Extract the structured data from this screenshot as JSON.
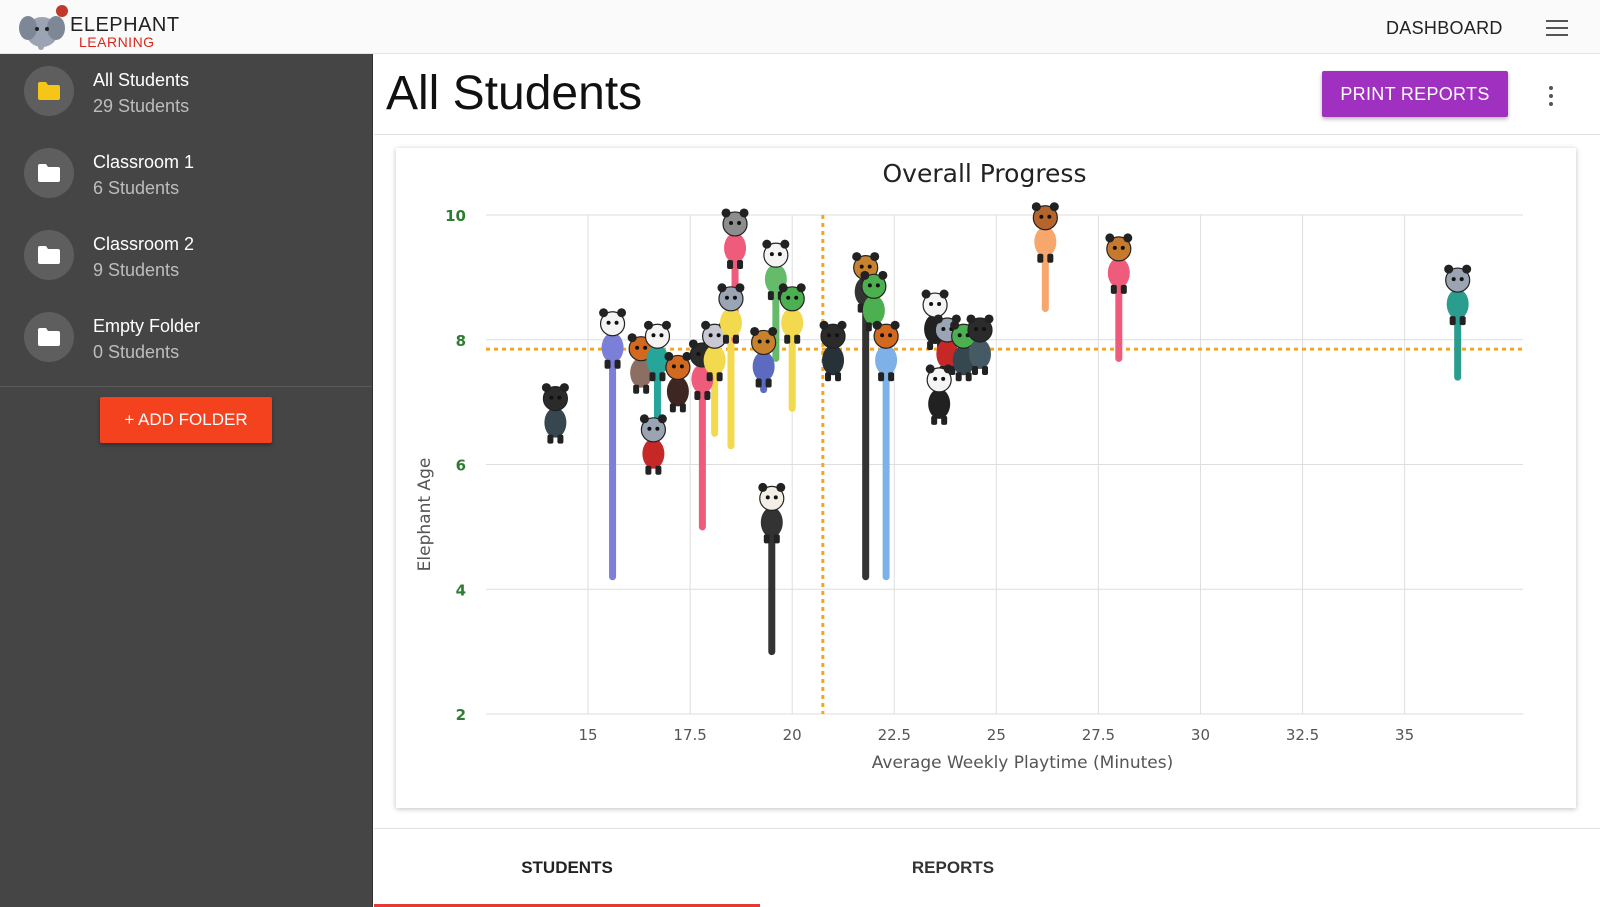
{
  "app": {
    "logo_line1": "ELEPHANT",
    "logo_line2": "LEARNING",
    "nav_link": "DASHBOARD"
  },
  "sidebar": {
    "folders": [
      {
        "name": "All Students",
        "count": "29 Students",
        "icon": "folder-icon",
        "color": "#f5c518"
      },
      {
        "name": "Classroom 1",
        "count": "6 Students",
        "icon": "folder-icon",
        "color": "#ffffff"
      },
      {
        "name": "Classroom 2",
        "count": "9 Students",
        "icon": "folder-icon",
        "color": "#ffffff"
      },
      {
        "name": "Empty Folder",
        "count": "0 Students",
        "icon": "folder-icon",
        "color": "#ffffff"
      }
    ],
    "add_folder_label": "+ ADD FOLDER"
  },
  "main": {
    "title": "All Students",
    "print_label": "PRINT REPORTS",
    "tabs": [
      {
        "label": "STUDENTS",
        "active": true
      },
      {
        "label": "REPORTS",
        "active": false
      }
    ]
  },
  "colors": {
    "accent_button": "#a030c0",
    "add_button": "#f4421f",
    "tab_indicator": "#e53935",
    "reference_line": "#f5a623",
    "axis_tick": "#2e7d32"
  },
  "chart_data": {
    "type": "scatter",
    "title": "Overall Progress",
    "xlabel": "Average Weekly Playtime (Minutes)",
    "ylabel": "Elephant Age",
    "xlim": [
      12.5,
      37.9
    ],
    "ylim": [
      2,
      10
    ],
    "xticks": [
      "15",
      "17.5",
      "20",
      "22.5",
      "25",
      "27.5",
      "30",
      "32.5",
      "35"
    ],
    "yticks": [
      "2",
      "4",
      "6",
      "8",
      "10"
    ],
    "grid": true,
    "reference_lines": {
      "x": 20.75,
      "y": 7.85
    },
    "points": [
      {
        "x": 14.2,
        "y": 6.8,
        "start": 6.8,
        "color": "#37474f",
        "avatar": "cat-avatar"
      },
      {
        "x": 15.6,
        "y": 8.0,
        "start": 4.2,
        "color": "#7b7fd8",
        "avatar": "panda-avatar"
      },
      {
        "x": 16.3,
        "y": 7.6,
        "start": 7.6,
        "color": "#8d6e63",
        "avatar": "fox-avatar"
      },
      {
        "x": 16.7,
        "y": 7.8,
        "start": 6.5,
        "color": "#26a69a",
        "avatar": "panda-avatar"
      },
      {
        "x": 16.6,
        "y": 6.3,
        "start": 6.3,
        "color": "#c62828",
        "avatar": "elephant-avatar"
      },
      {
        "x": 17.2,
        "y": 7.3,
        "start": 7.3,
        "color": "#3e2723",
        "avatar": "fox-avatar"
      },
      {
        "x": 17.8,
        "y": 7.5,
        "start": 5.0,
        "color": "#ef5b7a",
        "avatar": "cat-avatar"
      },
      {
        "x": 18.1,
        "y": 7.8,
        "start": 6.5,
        "color": "#f2d94e",
        "avatar": "bunny-avatar"
      },
      {
        "x": 18.5,
        "y": 8.4,
        "start": 6.3,
        "color": "#f2d94e",
        "avatar": "elephant-avatar"
      },
      {
        "x": 18.6,
        "y": 9.6,
        "start": 8.0,
        "color": "#ef5b7a",
        "avatar": "owl-avatar"
      },
      {
        "x": 19.3,
        "y": 7.7,
        "start": 7.2,
        "color": "#5c6bc0",
        "avatar": "lion-avatar"
      },
      {
        "x": 19.6,
        "y": 9.1,
        "start": 7.7,
        "color": "#66bb6a",
        "avatar": "panda-avatar"
      },
      {
        "x": 20.0,
        "y": 8.4,
        "start": 6.9,
        "color": "#f2d94e",
        "avatar": "frog-avatar"
      },
      {
        "x": 19.5,
        "y": 5.2,
        "start": 3.0,
        "color": "#333333",
        "avatar": "dog-avatar"
      },
      {
        "x": 21.0,
        "y": 7.8,
        "start": 7.8,
        "color": "#263238",
        "avatar": "cat-avatar"
      },
      {
        "x": 21.8,
        "y": 8.9,
        "start": 4.2,
        "color": "#333333",
        "avatar": "lion-avatar"
      },
      {
        "x": 22.0,
        "y": 8.6,
        "start": 8.6,
        "color": "#4caf50",
        "avatar": "frog-avatar"
      },
      {
        "x": 22.3,
        "y": 7.8,
        "start": 4.2,
        "color": "#7eb1e8",
        "avatar": "fox-avatar"
      },
      {
        "x": 23.5,
        "y": 8.3,
        "start": 8.3,
        "color": "#212121",
        "avatar": "panda-avatar"
      },
      {
        "x": 23.8,
        "y": 7.9,
        "start": 7.9,
        "color": "#c62828",
        "avatar": "elephant-avatar"
      },
      {
        "x": 23.6,
        "y": 7.1,
        "start": 7.1,
        "color": "#212121",
        "avatar": "panda-avatar"
      },
      {
        "x": 24.2,
        "y": 7.8,
        "start": 7.8,
        "color": "#37474f",
        "avatar": "frog-avatar"
      },
      {
        "x": 24.6,
        "y": 7.9,
        "start": 7.9,
        "color": "#455a64",
        "avatar": "cat-avatar"
      },
      {
        "x": 26.2,
        "y": 9.7,
        "start": 8.5,
        "color": "#f7a76c",
        "avatar": "deer-avatar"
      },
      {
        "x": 28.0,
        "y": 9.2,
        "start": 7.7,
        "color": "#ef5b7a",
        "avatar": "tiger-avatar"
      },
      {
        "x": 36.3,
        "y": 8.7,
        "start": 7.4,
        "color": "#2a9d8f",
        "avatar": "elephant-avatar"
      }
    ]
  }
}
